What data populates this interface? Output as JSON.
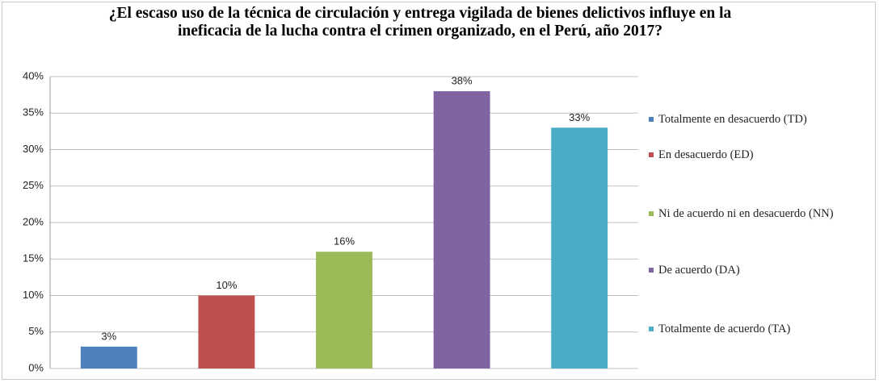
{
  "chart_data": {
    "type": "bar",
    "title": "¿El escaso uso de la técnica de circulación y entrega vigilada de bienes delictivos influye en la ineficacia de la lucha contra el crimen organizado, en el Perú, año 2017?",
    "categories": [
      "Totalmente en desacuerdo (TD)",
      "En desacuerdo (ED)",
      "Ni de acuerdo ni en desacuerdo (NN)",
      "De acuerdo (DA)",
      "Totalmente de acuerdo (TA)"
    ],
    "values": [
      3,
      10,
      16,
      38,
      33
    ],
    "value_labels": [
      "3%",
      "10%",
      "16%",
      "38%",
      "33%"
    ],
    "colors": [
      "#4f81bd",
      "#c0504d",
      "#9bbb59",
      "#8064a2",
      "#4bacc6"
    ],
    "ylim": [
      0,
      40
    ],
    "yticks": [
      {
        "value": 0,
        "label": "0%"
      },
      {
        "value": 5,
        "label": "5%"
      },
      {
        "value": 10,
        "label": "10%"
      },
      {
        "value": 15,
        "label": "15%"
      },
      {
        "value": 20,
        "label": "20%"
      },
      {
        "value": 25,
        "label": "25%"
      },
      {
        "value": 30,
        "label": "30%"
      },
      {
        "value": 35,
        "label": "35%"
      },
      {
        "value": 40,
        "label": "40%"
      }
    ],
    "grid": true,
    "legend": "right"
  }
}
